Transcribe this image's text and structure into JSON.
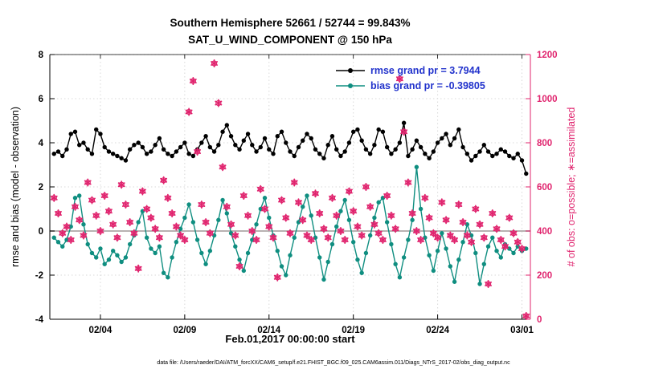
{
  "figure": {
    "caption": "data file: /Users/raeder/DAI/ATM_forcXX/CAM6_setup/f.e21.FHIST_BGC.f09_025.CAM6assim.011/Diags_NTrS_2017-02/obs_diag_output.nc"
  },
  "colors": {
    "rmse": "#000000",
    "bias": "#0f8e80",
    "obs": "#e0246e",
    "legend_text": "#2233cc",
    "zero_line": "#b8b2b2",
    "grid": "#d9d9d9",
    "axis": "#000000"
  },
  "chart_data": {
    "type": "line",
    "title_line1": "Southern Hemisphere 52661 / 52744 = 99.843%",
    "title_line2": "SAT_U_WIND_COMPONENT @ 150 hPa",
    "xlabel": "Feb.01,2017 00:00:00 start",
    "ylabel_left": "rmse and bias (model - observation)",
    "ylabel_right": "# of obs: o=possible; ∗=assimilated",
    "grid": true,
    "legend_position": "top-right",
    "xlim": [
      0,
      28.5
    ],
    "ylim_left": [
      -4,
      8
    ],
    "ylim_right": [
      0,
      1200
    ],
    "y_ticks_left": [
      -4,
      -2,
      0,
      2,
      4,
      6,
      8
    ],
    "y_ticks_right": [
      0,
      200,
      400,
      600,
      800,
      1000,
      1200
    ],
    "x_ticks": [
      {
        "day": 3,
        "label": "02/04"
      },
      {
        "day": 8,
        "label": "02/09"
      },
      {
        "day": 13,
        "label": "02/14"
      },
      {
        "day": 18,
        "label": "02/19"
      },
      {
        "day": 23,
        "label": "02/24"
      },
      {
        "day": 28,
        "label": "03/01"
      }
    ],
    "x_start": 0.25,
    "x_step": 0.25,
    "series": [
      {
        "name": "rmse grand pr = 3.7944",
        "axis": "left",
        "marker": "filled-circle",
        "color_key": "rmse",
        "values": [
          3.5,
          3.6,
          3.4,
          3.7,
          4.4,
          4.5,
          3.9,
          4.0,
          3.7,
          3.5,
          4.6,
          4.4,
          3.8,
          3.6,
          3.5,
          3.4,
          3.3,
          3.2,
          3.7,
          3.9,
          4.0,
          3.8,
          3.5,
          3.6,
          3.9,
          4.2,
          3.7,
          3.5,
          3.4,
          3.6,
          3.8,
          4.0,
          3.5,
          3.4,
          3.7,
          4.0,
          4.3,
          3.8,
          3.6,
          3.9,
          4.5,
          4.8,
          4.3,
          3.9,
          3.7,
          4.1,
          4.4,
          3.9,
          3.6,
          3.8,
          4.2,
          3.7,
          3.5,
          4.3,
          4.5,
          4.0,
          3.6,
          3.4,
          3.8,
          4.1,
          4.4,
          4.2,
          3.7,
          3.5,
          3.3,
          3.9,
          4.3,
          3.7,
          3.4,
          3.6,
          4.0,
          4.5,
          4.6,
          4.1,
          3.7,
          3.5,
          3.9,
          4.6,
          4.5,
          3.8,
          3.5,
          3.7,
          4.0,
          4.9,
          3.4,
          3.7,
          4.1,
          3.8,
          3.5,
          3.3,
          3.6,
          4.0,
          4.2,
          4.4,
          3.9,
          4.2,
          4.6,
          3.8,
          3.5,
          3.2,
          3.4,
          3.6,
          3.9,
          3.6,
          3.4,
          3.5,
          3.7,
          3.6,
          3.4,
          3.3,
          3.5,
          3.2,
          2.6
        ]
      },
      {
        "name": "bias grand pr = -0.39805",
        "axis": "left",
        "marker": "filled-circle",
        "color_key": "bias",
        "values": [
          -0.3,
          -0.5,
          -0.7,
          -0.4,
          0.2,
          1.5,
          1.6,
          0.3,
          -0.6,
          -1.0,
          -1.2,
          -0.8,
          -1.5,
          -1.3,
          -0.9,
          -1.1,
          -1.4,
          -1.2,
          -0.6,
          -0.2,
          0.4,
          0.9,
          -0.3,
          -0.8,
          -1.0,
          -0.7,
          -1.9,
          -2.1,
          -1.2,
          -0.5,
          0.1,
          0.6,
          1.2,
          0.4,
          -0.4,
          -1.0,
          -1.5,
          -0.9,
          -0.2,
          0.5,
          1.4,
          0.8,
          -0.1,
          -0.7,
          -1.3,
          -1.8,
          -1.0,
          -0.4,
          0.3,
          1.0,
          1.5,
          0.6,
          -0.2,
          -0.9,
          -1.6,
          -2.0,
          -1.1,
          -0.3,
          0.4,
          1.1,
          1.6,
          0.7,
          -0.3,
          -1.2,
          -2.2,
          -1.4,
          -0.6,
          0.2,
          0.9,
          1.4,
          0.5,
          -0.5,
          -1.3,
          -1.9,
          -1.0,
          -0.2,
          0.6,
          1.3,
          1.5,
          0.4,
          -0.6,
          -1.5,
          -2.1,
          -1.2,
          -0.4,
          0.5,
          2.9,
          1.0,
          -0.3,
          -1.1,
          -1.8,
          -0.9,
          -0.1,
          -0.8,
          -1.6,
          -2.3,
          -1.3,
          -0.5,
          0.3,
          -0.2,
          -1.0,
          -2.4,
          -1.5,
          -0.7,
          -0.3,
          -0.9,
          -1.2,
          -0.6,
          -0.8,
          -1.0,
          -0.7,
          -0.9,
          -0.8
        ]
      },
      {
        "name": "# of obs assimilated",
        "axis": "right",
        "marker": "asterisk",
        "color_key": "obs",
        "values": [
          550,
          480,
          390,
          420,
          360,
          510,
          450,
          380,
          620,
          540,
          470,
          400,
          560,
          490,
          430,
          370,
          610,
          520,
          440,
          390,
          230,
          580,
          500,
          460,
          410,
          370,
          630,
          550,
          480,
          420,
          380,
          360,
          940,
          1080,
          760,
          520,
          440,
          390,
          1160,
          980,
          690,
          510,
          430,
          380,
          240,
          560,
          470,
          400,
          360,
          590,
          500,
          420,
          370,
          190,
          540,
          460,
          390,
          620,
          530,
          450,
          380,
          360,
          570,
          480,
          410,
          370,
          550,
          470,
          400,
          360,
          580,
          490,
          420,
          380,
          600,
          510,
          430,
          390,
          360,
          560,
          470,
          410,
          1090,
          850,
          620,
          480,
          400,
          360,
          550,
          460,
          390,
          370,
          530,
          450,
          380,
          360,
          520,
          440,
          380,
          350,
          500,
          430,
          370,
          160,
          480,
          410,
          360,
          330,
          460,
          390,
          350,
          320,
          15
        ]
      }
    ]
  }
}
